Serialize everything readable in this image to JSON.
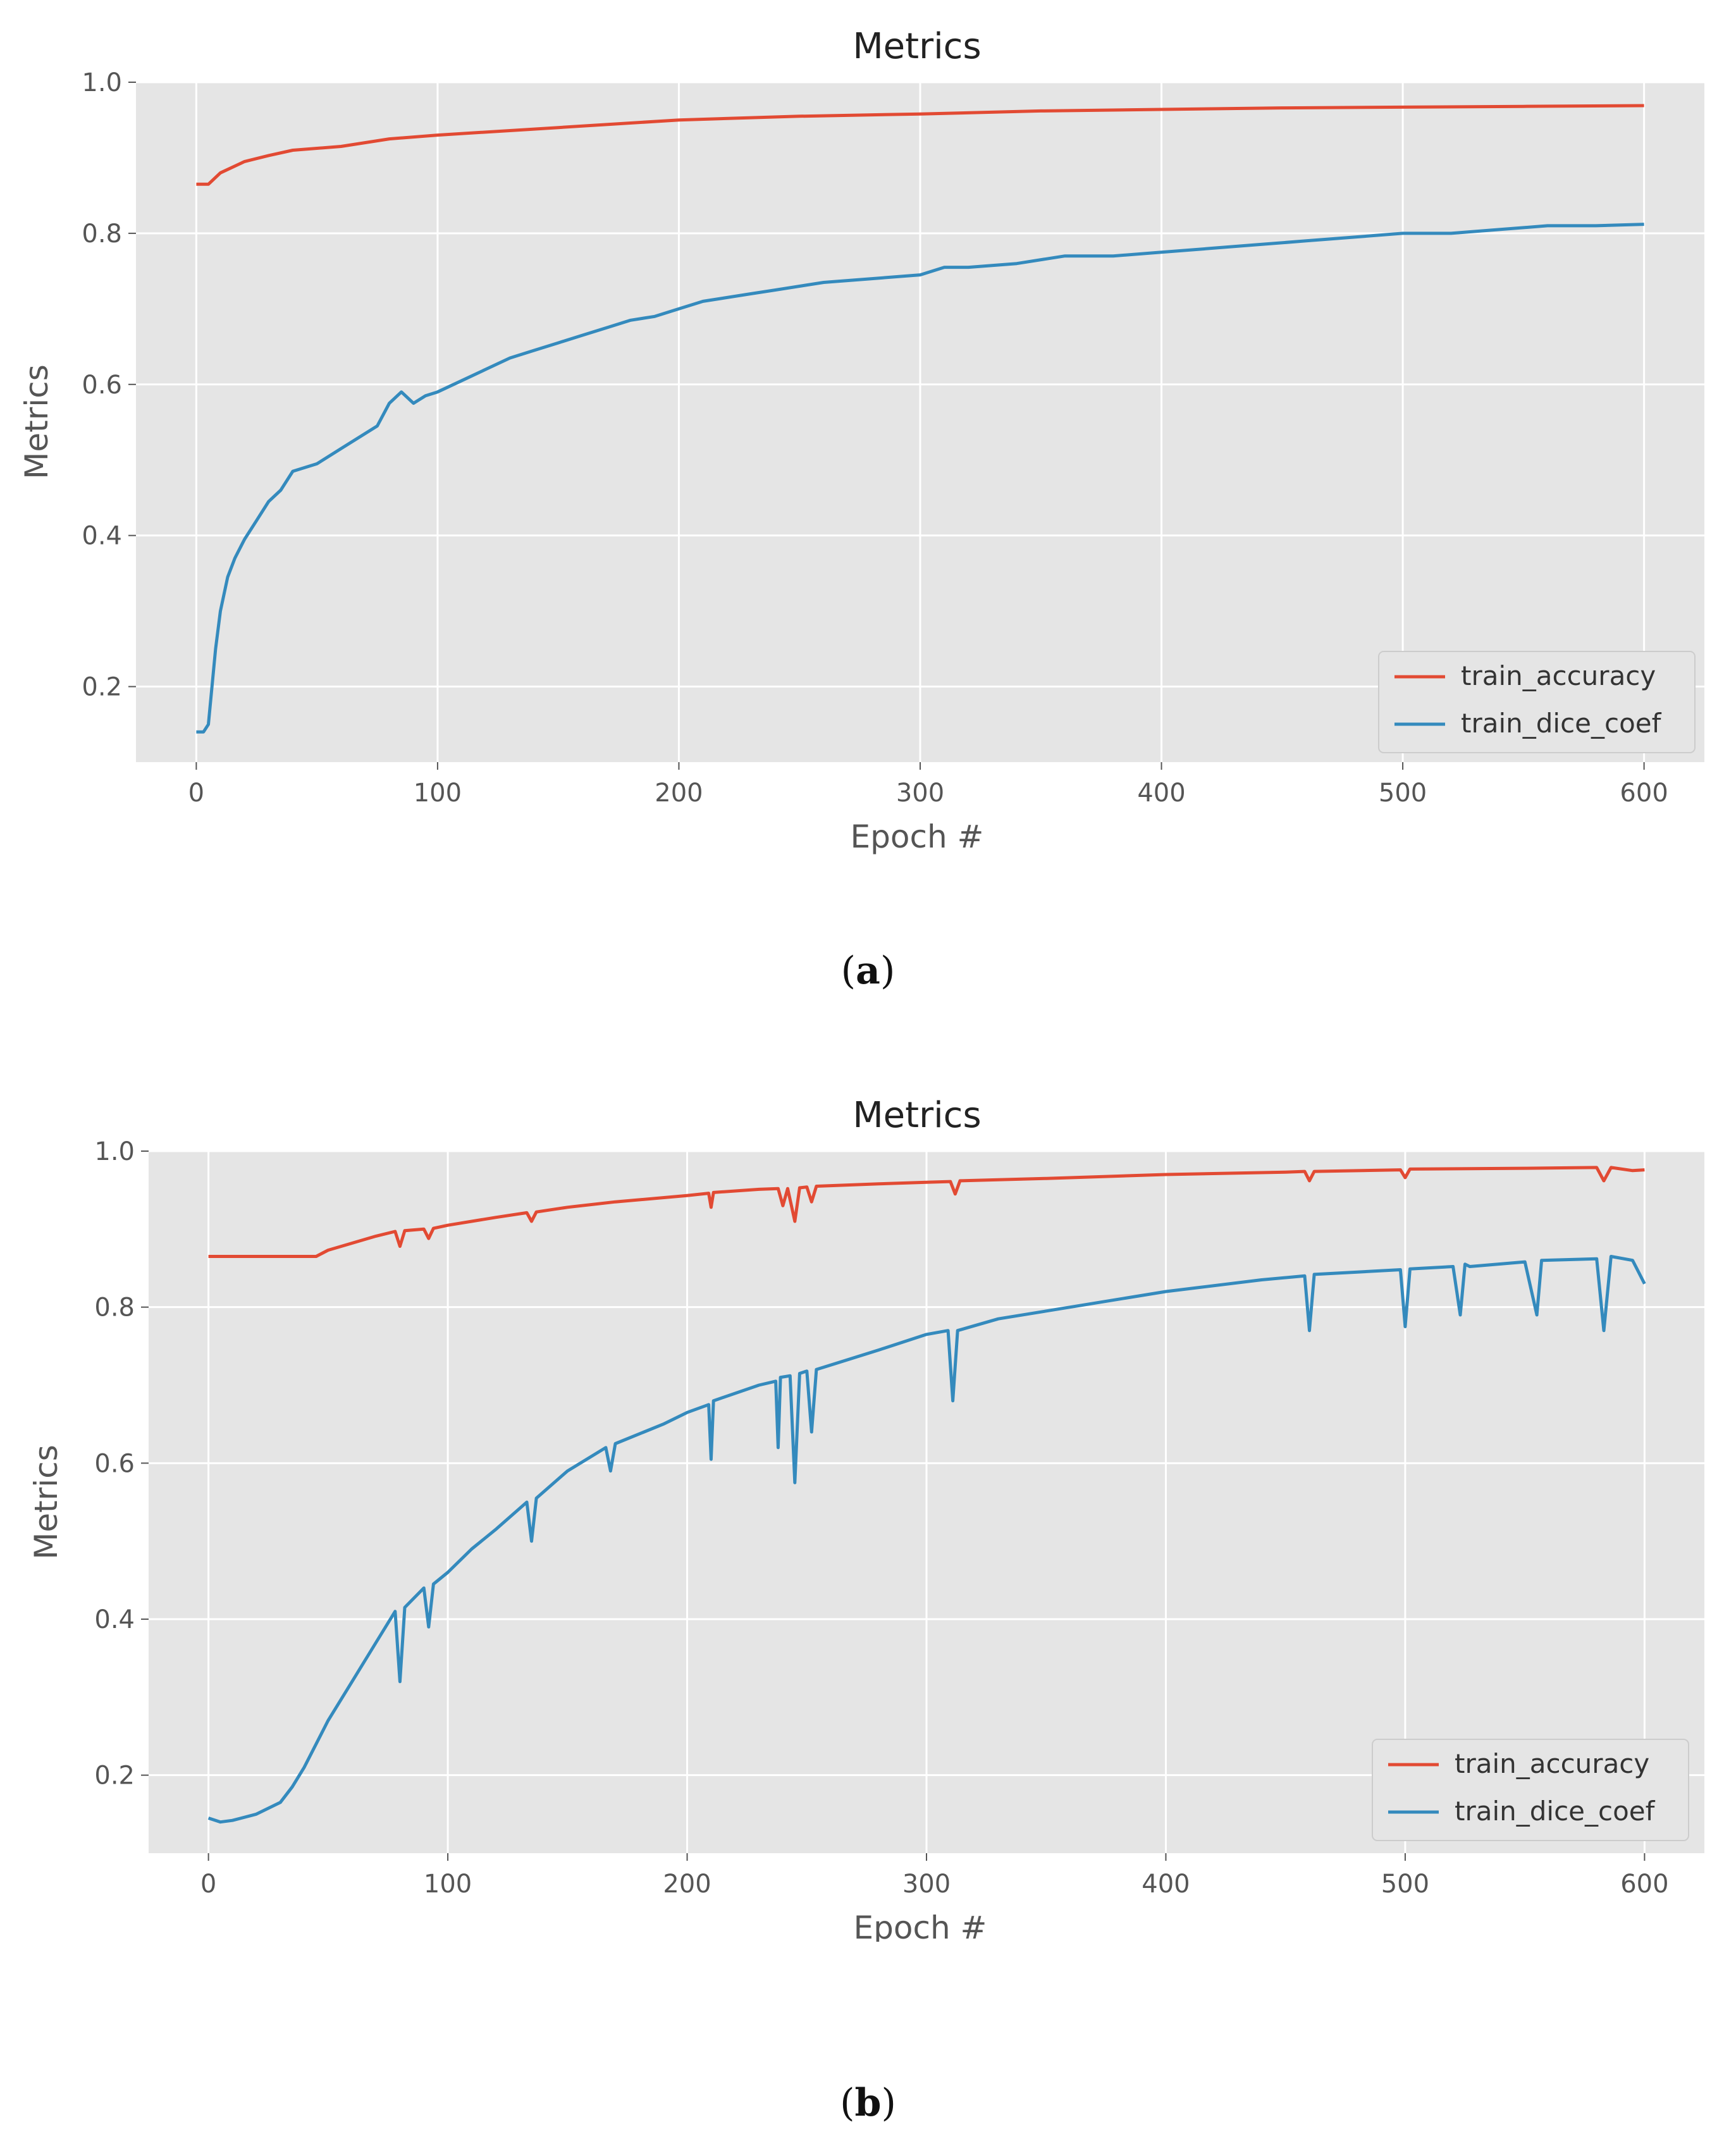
{
  "captions": {
    "a": {
      "open": "(",
      "letter": "a",
      "close": ")"
    },
    "b": {
      "open": "(",
      "letter": "b",
      "close": ")"
    }
  },
  "colors": {
    "background": "#e5e5e5",
    "grid": "#ffffff",
    "train_accuracy": "#e24a33",
    "train_dice_coef": "#348abd"
  },
  "chart_data": [
    {
      "type": "line",
      "title": "Metrics",
      "xlabel": "Epoch #",
      "ylabel": "Metrics",
      "xlim": [
        -25,
        625
      ],
      "ylim": [
        0.1,
        1.0
      ],
      "xticks": [
        0,
        100,
        200,
        300,
        400,
        500,
        600
      ],
      "yticks": [
        0.2,
        0.4,
        0.6,
        0.8,
        1.0
      ],
      "xtick_labels": [
        "0",
        "100",
        "200",
        "300",
        "400",
        "500",
        "600"
      ],
      "ytick_labels": [
        "0.2",
        "0.4",
        "0.6",
        "0.8",
        "1.0"
      ],
      "legend_position": "lower-right",
      "series": [
        {
          "name": "train_accuracy",
          "x": [
            0,
            5,
            10,
            20,
            30,
            40,
            60,
            80,
            100,
            150,
            200,
            250,
            300,
            350,
            400,
            450,
            500,
            550,
            600
          ],
          "y": [
            0.865,
            0.865,
            0.88,
            0.895,
            0.903,
            0.91,
            0.915,
            0.925,
            0.93,
            0.94,
            0.95,
            0.955,
            0.958,
            0.962,
            0.964,
            0.966,
            0.967,
            0.968,
            0.969
          ]
        },
        {
          "name": "train_dice_coef",
          "x": [
            0,
            3,
            5,
            8,
            10,
            13,
            16,
            20,
            25,
            30,
            35,
            40,
            50,
            60,
            70,
            75,
            80,
            85,
            90,
            95,
            100,
            110,
            120,
            130,
            140,
            150,
            160,
            170,
            180,
            190,
            200,
            210,
            220,
            230,
            240,
            250,
            260,
            280,
            300,
            310,
            320,
            340,
            360,
            380,
            400,
            420,
            440,
            460,
            480,
            500,
            520,
            540,
            560,
            580,
            600
          ],
          "y": [
            0.14,
            0.14,
            0.15,
            0.25,
            0.3,
            0.345,
            0.37,
            0.395,
            0.42,
            0.445,
            0.46,
            0.485,
            0.495,
            0.515,
            0.535,
            0.545,
            0.575,
            0.59,
            0.575,
            0.585,
            0.59,
            0.605,
            0.62,
            0.635,
            0.645,
            0.655,
            0.665,
            0.675,
            0.685,
            0.69,
            0.7,
            0.71,
            0.715,
            0.72,
            0.725,
            0.73,
            0.735,
            0.74,
            0.745,
            0.755,
            0.755,
            0.76,
            0.77,
            0.77,
            0.775,
            0.78,
            0.785,
            0.79,
            0.795,
            0.8,
            0.8,
            0.805,
            0.81,
            0.81,
            0.812
          ]
        }
      ]
    },
    {
      "type": "line",
      "title": "Metrics",
      "xlabel": "Epoch #",
      "ylabel": "Metrics",
      "xlim": [
        -25,
        625
      ],
      "ylim": [
        0.1,
        1.0
      ],
      "xticks": [
        0,
        100,
        200,
        300,
        400,
        500,
        600
      ],
      "yticks": [
        0.2,
        0.4,
        0.6,
        0.8,
        1.0
      ],
      "xtick_labels": [
        "0",
        "100",
        "200",
        "300",
        "400",
        "500",
        "600"
      ],
      "ytick_labels": [
        "0.2",
        "0.4",
        "0.6",
        "0.8",
        "1.0"
      ],
      "legend_position": "lower-right",
      "series": [
        {
          "name": "train_accuracy",
          "x": [
            0,
            10,
            20,
            30,
            45,
            50,
            60,
            70,
            78,
            80,
            82,
            90,
            92,
            94,
            100,
            120,
            133,
            135,
            137,
            150,
            170,
            200,
            209,
            210,
            211,
            230,
            238,
            240,
            242,
            245,
            247,
            250,
            252,
            254,
            280,
            300,
            310,
            312,
            314,
            350,
            400,
            450,
            458,
            460,
            462,
            498,
            500,
            502,
            550,
            580,
            583,
            586,
            595,
            600
          ],
          "y": [
            0.865,
            0.865,
            0.865,
            0.865,
            0.865,
            0.873,
            0.882,
            0.891,
            0.897,
            0.878,
            0.898,
            0.9,
            0.888,
            0.901,
            0.905,
            0.915,
            0.921,
            0.91,
            0.922,
            0.928,
            0.935,
            0.943,
            0.946,
            0.928,
            0.947,
            0.951,
            0.952,
            0.93,
            0.952,
            0.91,
            0.953,
            0.954,
            0.935,
            0.955,
            0.958,
            0.96,
            0.961,
            0.945,
            0.962,
            0.965,
            0.97,
            0.973,
            0.974,
            0.962,
            0.974,
            0.976,
            0.966,
            0.977,
            0.978,
            0.979,
            0.962,
            0.979,
            0.975,
            0.976
          ]
        },
        {
          "name": "train_dice_coef",
          "x": [
            0,
            5,
            10,
            20,
            30,
            35,
            40,
            50,
            60,
            70,
            78,
            80,
            82,
            90,
            92,
            94,
            100,
            110,
            120,
            133,
            135,
            137,
            150,
            166,
            168,
            170,
            190,
            200,
            209,
            210,
            211,
            230,
            237,
            238,
            239,
            243,
            245,
            247,
            250,
            252,
            254,
            280,
            300,
            309,
            311,
            313,
            330,
            360,
            400,
            440,
            458,
            460,
            462,
            480,
            498,
            500,
            502,
            520,
            523,
            525,
            527,
            550,
            555,
            557,
            580,
            583,
            586,
            595,
            600
          ],
          "y": [
            0.145,
            0.14,
            0.142,
            0.15,
            0.165,
            0.185,
            0.21,
            0.27,
            0.32,
            0.37,
            0.41,
            0.32,
            0.415,
            0.44,
            0.39,
            0.445,
            0.46,
            0.49,
            0.515,
            0.55,
            0.5,
            0.555,
            0.59,
            0.62,
            0.59,
            0.625,
            0.65,
            0.665,
            0.675,
            0.605,
            0.68,
            0.7,
            0.705,
            0.62,
            0.71,
            0.712,
            0.575,
            0.715,
            0.718,
            0.64,
            0.72,
            0.745,
            0.765,
            0.77,
            0.68,
            0.77,
            0.785,
            0.8,
            0.82,
            0.835,
            0.84,
            0.77,
            0.842,
            0.845,
            0.848,
            0.775,
            0.849,
            0.852,
            0.79,
            0.855,
            0.852,
            0.858,
            0.79,
            0.86,
            0.862,
            0.77,
            0.865,
            0.86,
            0.83
          ]
        }
      ]
    }
  ]
}
